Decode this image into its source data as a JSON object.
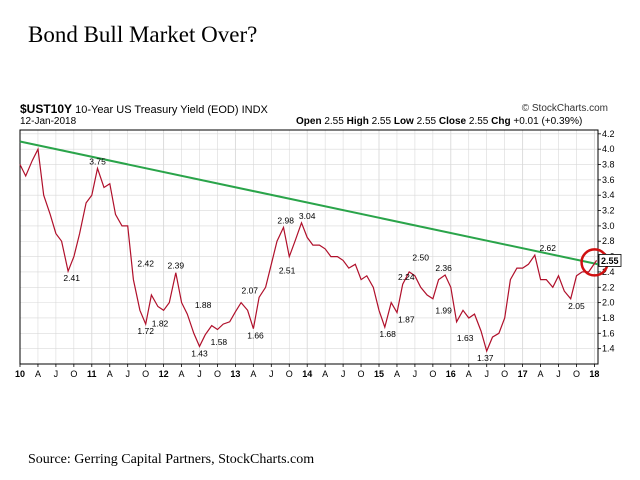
{
  "page": {
    "title": "Bond Bull Market Over?",
    "source": "Source: Gerring Capital Partners, StockCharts.com"
  },
  "header": {
    "symbol": "$UST10Y",
    "name": "10-Year US Treasury Yield (EOD)",
    "exchange": "INDX",
    "date": "12-Jan-2018",
    "brand": "© StockCharts.com",
    "open_label": "Open",
    "open": "2.55",
    "high_label": "High",
    "high": "2.55",
    "low_label": "Low",
    "low": "2.55",
    "close_label": "Close",
    "close": "2.55",
    "chg_label": "Chg",
    "chg": "+0.01 (+0.39%)"
  },
  "colors": {
    "price": "#b0102b",
    "trendline": "#2aa44a",
    "circle": "#d01010",
    "grid": "#d9d9d9"
  },
  "chart_data": {
    "type": "line",
    "title": "",
    "xlabel": "",
    "ylabel": "",
    "xlim": [
      2010.0,
      2018.05
    ],
    "ylim": [
      1.2,
      4.25
    ],
    "grid": true,
    "y_axis_side": "right",
    "y_ticks": [
      1.4,
      1.6,
      1.8,
      2.0,
      2.2,
      2.4,
      2.6,
      2.8,
      3.0,
      3.2,
      3.4,
      3.6,
      3.8,
      4.0,
      4.2
    ],
    "y_tick_labels": [
      "1.4",
      "1.6",
      "1.8",
      "2.0",
      "2.2",
      "2.4",
      "2.6",
      "2.8",
      "3.0",
      "3.2",
      "3.4",
      "3.6",
      "3.8",
      "4.0",
      "4.2"
    ],
    "x_ticks": [
      {
        "x": 2010.0,
        "label": "10",
        "major": true
      },
      {
        "x": 2010.25,
        "label": "A"
      },
      {
        "x": 2010.5,
        "label": "J"
      },
      {
        "x": 2010.75,
        "label": "O"
      },
      {
        "x": 2011.0,
        "label": "11",
        "major": true
      },
      {
        "x": 2011.25,
        "label": "A"
      },
      {
        "x": 2011.5,
        "label": "J"
      },
      {
        "x": 2011.75,
        "label": "O"
      },
      {
        "x": 2012.0,
        "label": "12",
        "major": true
      },
      {
        "x": 2012.25,
        "label": "A"
      },
      {
        "x": 2012.5,
        "label": "J"
      },
      {
        "x": 2012.75,
        "label": "O"
      },
      {
        "x": 2013.0,
        "label": "13",
        "major": true
      },
      {
        "x": 2013.25,
        "label": "A"
      },
      {
        "x": 2013.5,
        "label": "J"
      },
      {
        "x": 2013.75,
        "label": "O"
      },
      {
        "x": 2014.0,
        "label": "14",
        "major": true
      },
      {
        "x": 2014.25,
        "label": "A"
      },
      {
        "x": 2014.5,
        "label": "J"
      },
      {
        "x": 2014.75,
        "label": "O"
      },
      {
        "x": 2015.0,
        "label": "15",
        "major": true
      },
      {
        "x": 2015.25,
        "label": "A"
      },
      {
        "x": 2015.5,
        "label": "J"
      },
      {
        "x": 2015.75,
        "label": "O"
      },
      {
        "x": 2016.0,
        "label": "16",
        "major": true
      },
      {
        "x": 2016.25,
        "label": "A"
      },
      {
        "x": 2016.5,
        "label": "J"
      },
      {
        "x": 2016.75,
        "label": "O"
      },
      {
        "x": 2017.0,
        "label": "17",
        "major": true
      },
      {
        "x": 2017.25,
        "label": "A"
      },
      {
        "x": 2017.5,
        "label": "J"
      },
      {
        "x": 2017.75,
        "label": "O"
      },
      {
        "x": 2018.0,
        "label": "18",
        "major": true
      }
    ],
    "series": [
      {
        "x": [
          2010.0,
          2010.08,
          2010.17,
          2010.25,
          2010.33,
          2010.42,
          2010.5,
          2010.58,
          2010.67,
          2010.75,
          2010.83,
          2010.92,
          2011.0,
          2011.08,
          2011.17,
          2011.25,
          2011.33,
          2011.42,
          2011.5,
          2011.58,
          2011.67,
          2011.75,
          2011.83,
          2011.92,
          2012.0,
          2012.08,
          2012.17,
          2012.25,
          2012.33,
          2012.42,
          2012.5,
          2012.58,
          2012.67,
          2012.75,
          2012.83,
          2012.92,
          2013.0,
          2013.08,
          2013.17,
          2013.25,
          2013.33,
          2013.42,
          2013.5,
          2013.58,
          2013.67,
          2013.75,
          2013.83,
          2013.92,
          2014.0,
          2014.08,
          2014.17,
          2014.25,
          2014.33,
          2014.42,
          2014.5,
          2014.58,
          2014.67,
          2014.75,
          2014.83,
          2014.92,
          2015.0,
          2015.08,
          2015.17,
          2015.25,
          2015.33,
          2015.42,
          2015.5,
          2015.58,
          2015.67,
          2015.75,
          2015.83,
          2015.92,
          2016.0,
          2016.08,
          2016.17,
          2016.25,
          2016.33,
          2016.42,
          2016.5,
          2016.58,
          2016.67,
          2016.75,
          2016.83,
          2016.92,
          2017.0,
          2017.08,
          2017.17,
          2017.25,
          2017.33,
          2017.42,
          2017.5,
          2017.58,
          2017.67,
          2017.75,
          2017.83,
          2017.92,
          2018.03
        ],
        "y": [
          3.8,
          3.65,
          3.85,
          4.0,
          3.4,
          3.15,
          2.9,
          2.8,
          2.41,
          2.6,
          2.9,
          3.3,
          3.4,
          3.75,
          3.5,
          3.55,
          3.15,
          3.0,
          3.0,
          2.3,
          1.9,
          1.72,
          2.1,
          1.95,
          1.9,
          2.0,
          2.39,
          2.0,
          1.85,
          1.6,
          1.43,
          1.58,
          1.7,
          1.65,
          1.72,
          1.75,
          1.88,
          2.0,
          1.9,
          1.66,
          2.07,
          2.2,
          2.5,
          2.8,
          2.98,
          2.6,
          2.8,
          3.04,
          2.85,
          2.75,
          2.75,
          2.7,
          2.6,
          2.6,
          2.55,
          2.45,
          2.5,
          2.3,
          2.35,
          2.2,
          1.9,
          1.68,
          2.0,
          1.87,
          2.24,
          2.4,
          2.35,
          2.2,
          2.1,
          2.05,
          2.3,
          2.36,
          2.2,
          1.75,
          1.9,
          1.8,
          1.85,
          1.63,
          1.37,
          1.55,
          1.6,
          1.8,
          2.3,
          2.45,
          2.45,
          2.5,
          2.62,
          2.3,
          2.3,
          2.2,
          2.35,
          2.15,
          2.05,
          2.35,
          2.4,
          2.4,
          2.55
        ]
      }
    ],
    "trendline": {
      "x": [
        2010.0,
        2018.05
      ],
      "y": [
        4.1,
        2.5
      ]
    },
    "highlight": {
      "x": 2018.03,
      "y": 2.55
    },
    "last_value_label": "2.55",
    "annotations": [
      {
        "x": 2010.72,
        "y": 2.41,
        "text": "2.41",
        "pos": "below"
      },
      {
        "x": 2011.08,
        "y": 3.75,
        "text": "3.75",
        "pos": "above"
      },
      {
        "x": 2011.75,
        "y": 2.42,
        "text": "2.42",
        "pos": "above"
      },
      {
        "x": 2011.75,
        "y": 1.72,
        "text": "1.72",
        "pos": "below"
      },
      {
        "x": 2011.95,
        "y": 1.82,
        "text": "1.82",
        "pos": "below"
      },
      {
        "x": 2012.17,
        "y": 2.39,
        "text": "2.39",
        "pos": "above"
      },
      {
        "x": 2012.55,
        "y": 1.88,
        "text": "1.88",
        "pos": "above"
      },
      {
        "x": 2012.5,
        "y": 1.43,
        "text": "1.43",
        "pos": "below"
      },
      {
        "x": 2012.77,
        "y": 1.58,
        "text": "1.58",
        "pos": "below"
      },
      {
        "x": 2013.2,
        "y": 2.07,
        "text": "2.07",
        "pos": "above"
      },
      {
        "x": 2013.28,
        "y": 1.66,
        "text": "1.66",
        "pos": "below"
      },
      {
        "x": 2013.7,
        "y": 2.98,
        "text": "2.98",
        "pos": "above"
      },
      {
        "x": 2013.72,
        "y": 2.51,
        "text": "2.51",
        "pos": "below"
      },
      {
        "x": 2014.0,
        "y": 3.04,
        "text": "3.04",
        "pos": "above"
      },
      {
        "x": 2015.38,
        "y": 2.24,
        "text": "2.24",
        "pos": "above"
      },
      {
        "x": 2015.12,
        "y": 1.68,
        "text": "1.68",
        "pos": "below"
      },
      {
        "x": 2015.38,
        "y": 1.87,
        "text": "1.87",
        "pos": "below"
      },
      {
        "x": 2015.58,
        "y": 2.5,
        "text": "2.50",
        "pos": "above"
      },
      {
        "x": 2015.9,
        "y": 2.36,
        "text": "2.36",
        "pos": "above"
      },
      {
        "x": 2015.9,
        "y": 1.99,
        "text": "1.99",
        "pos": "below"
      },
      {
        "x": 2016.2,
        "y": 1.63,
        "text": "1.63",
        "pos": "below"
      },
      {
        "x": 2016.48,
        "y": 1.37,
        "text": "1.37",
        "pos": "below"
      },
      {
        "x": 2017.35,
        "y": 2.62,
        "text": "2.62",
        "pos": "above"
      },
      {
        "x": 2017.75,
        "y": 2.05,
        "text": "2.05",
        "pos": "below"
      }
    ]
  }
}
